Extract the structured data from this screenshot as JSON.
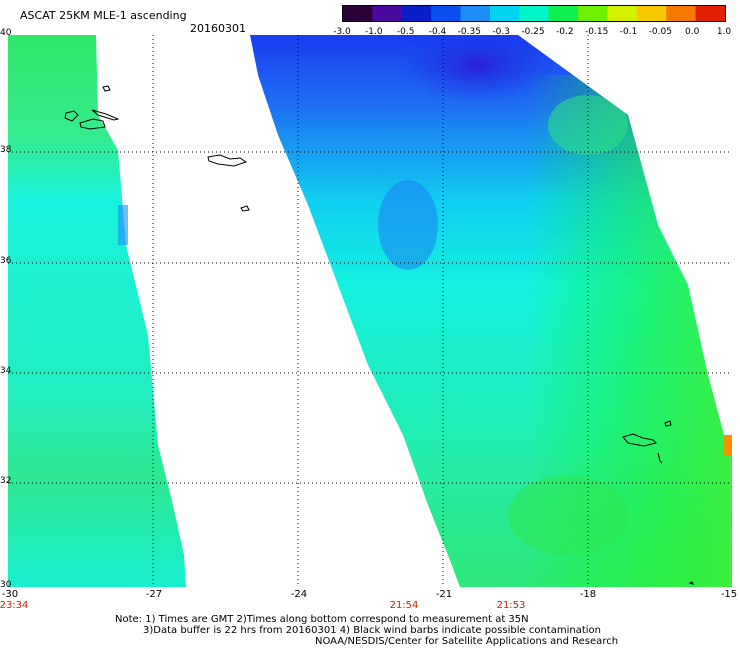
{
  "header": {
    "title": "ASCAT 25KM MLE-1 ascending",
    "date": "20160301"
  },
  "colorbar": {
    "ticks": [
      "-3.0",
      "-1.0",
      "-0.5",
      "-0.4",
      "-0.35",
      "-0.3",
      "-0.25",
      "-0.2",
      "-0.15",
      "-0.1",
      "-0.05",
      "0.0",
      "1.0"
    ],
    "colors": [
      "#2a0038",
      "#4a0a9e",
      "#0a1ec8",
      "#0a50f0",
      "#1e8cf5",
      "#00d2f0",
      "#00f5c8",
      "#10ef50",
      "#6ef000",
      "#d2f000",
      "#f5c800",
      "#f57800",
      "#e01e00"
    ]
  },
  "map": {
    "lat_labels": [
      "40",
      "38",
      "36",
      "34",
      "32",
      "30"
    ],
    "lon_labels": [
      "-30",
      "-27",
      "-24",
      "-21",
      "-18",
      "-15"
    ],
    "time_labels": [
      "23:34",
      "21:54",
      "21:53"
    ],
    "colors": {
      "green": "#2ee86a",
      "cyan": "#18f2dc",
      "blue": "#1a3cf0",
      "deep_blue": "#2a20d8",
      "land_outline": "#000000",
      "grid": "#000000"
    }
  },
  "notes": {
    "line1": "Note: 1) Times are GMT 2)Times along bottom correspond to measurement at 35N",
    "line2": "3)Data buffer is 22 hrs from 20160301 4) Black wind barbs indicate possible contamination",
    "line3": "NOAA/NESDIS/Center for Satellite Applications and Research"
  }
}
